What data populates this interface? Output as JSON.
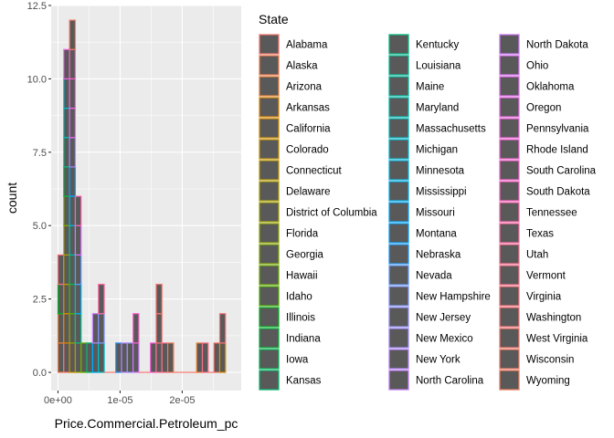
{
  "chart_data": {
    "type": "bar",
    "subtype": "stacked-histogram",
    "xlabel": "Price.Commercial.Petroleum_pc",
    "ylabel": "count",
    "xlim": [
      -1.1e-06,
      2.95e-05
    ],
    "ylim": [
      -0.62,
      12.5
    ],
    "x_ticks": [
      {
        "value": 0,
        "label": "0e+00"
      },
      {
        "value": 1e-05,
        "label": "1e-05"
      },
      {
        "value": 2e-05,
        "label": "2e-05"
      }
    ],
    "y_ticks": [
      {
        "value": 0,
        "label": "0.0"
      },
      {
        "value": 2.5,
        "label": "2.5"
      },
      {
        "value": 5,
        "label": "5.0"
      },
      {
        "value": 7.5,
        "label": "7.5"
      },
      {
        "value": 10,
        "label": "10.0"
      },
      {
        "value": 12.5,
        "label": "12.5"
      }
    ],
    "bin_start": 0,
    "bin_width": 9.3e-07,
    "bin_totals": [
      4,
      11,
      12,
      6,
      1,
      1,
      2,
      3,
      0,
      0,
      1,
      1,
      1,
      2,
      0,
      0,
      1,
      3,
      1,
      1,
      0,
      0,
      0,
      0,
      1,
      1,
      0,
      1,
      2
    ],
    "bin_state_counts": [
      [
        [
          1,
          1
        ],
        [
          2,
          1
        ],
        [
          13,
          1
        ],
        [
          46,
          1
        ]
      ],
      [
        [
          0,
          1
        ],
        [
          3,
          1
        ],
        [
          4,
          1
        ],
        [
          6,
          1
        ],
        [
          7,
          1
        ],
        [
          10,
          1
        ],
        [
          14,
          1
        ],
        [
          17,
          1
        ],
        [
          20,
          1
        ],
        [
          22,
          1
        ],
        [
          37,
          1
        ]
      ],
      [
        [
          5,
          1
        ],
        [
          9,
          1
        ],
        [
          12,
          1
        ],
        [
          15,
          1
        ],
        [
          19,
          1
        ],
        [
          23,
          1
        ],
        [
          26,
          1
        ],
        [
          31,
          1
        ],
        [
          36,
          1
        ],
        [
          38,
          1
        ],
        [
          41,
          1
        ],
        [
          49,
          1
        ]
      ],
      [
        [
          8,
          1
        ],
        [
          18,
          1
        ],
        [
          24,
          1
        ],
        [
          28,
          1
        ],
        [
          35,
          1
        ],
        [
          42,
          1
        ]
      ],
      [
        [
          11,
          1
        ]
      ],
      [
        [
          16,
          1
        ]
      ],
      [
        [
          25,
          1
        ],
        [
          33,
          1
        ]
      ],
      [
        [
          21,
          1
        ],
        [
          29,
          1
        ],
        [
          43,
          1
        ]
      ],
      [],
      [],
      [
        [
          27,
          1
        ]
      ],
      [
        [
          32,
          1
        ]
      ],
      [
        [
          30,
          1
        ]
      ],
      [
        [
          34,
          1
        ],
        [
          40,
          1
        ]
      ],
      [],
      [],
      [
        [
          39,
          1
        ]
      ],
      [
        [
          44,
          1
        ],
        [
          47,
          1
        ],
        [
          48,
          1
        ]
      ],
      [
        [
          45,
          1
        ]
      ],
      [
        [
          50,
          1
        ]
      ],
      [],
      [],
      [],
      [],
      [
        [
          2,
          1
        ]
      ],
      [
        [
          45,
          1
        ]
      ],
      [],
      [
        [
          48,
          1
        ]
      ],
      [
        [
          4,
          1
        ],
        [
          47,
          1
        ]
      ]
    ],
    "legend": {
      "title": "State",
      "placement": "right",
      "columns": 3,
      "fill_color": "#595959",
      "entries": [
        {
          "name": "Alabama",
          "color": "#F8766D"
        },
        {
          "name": "Alaska",
          "color": "#F47D4D"
        },
        {
          "name": "Arizona",
          "color": "#EC8239"
        },
        {
          "name": "Arkansas",
          "color": "#E38900"
        },
        {
          "name": "California",
          "color": "#D89000"
        },
        {
          "name": "Colorado",
          "color": "#CC9600"
        },
        {
          "name": "Connecticut",
          "color": "#BF9B00"
        },
        {
          "name": "Delaware",
          "color": "#B0A100"
        },
        {
          "name": "District of Columbia",
          "color": "#A3A500"
        },
        {
          "name": "Florida",
          "color": "#94A900"
        },
        {
          "name": "Georgia",
          "color": "#81AD00"
        },
        {
          "name": "Hawaii",
          "color": "#6BB100"
        },
        {
          "name": "Idaho",
          "color": "#4CB400"
        },
        {
          "name": "Illinois",
          "color": "#00B81F"
        },
        {
          "name": "Indiana",
          "color": "#00BA38"
        },
        {
          "name": "Iowa",
          "color": "#00BC56"
        },
        {
          "name": "Kansas",
          "color": "#00BF70"
        },
        {
          "name": "Kentucky",
          "color": "#00C083"
        },
        {
          "name": "Louisiana",
          "color": "#00C096"
        },
        {
          "name": "Maine",
          "color": "#00C0A7"
        },
        {
          "name": "Maryland",
          "color": "#00C0B8"
        },
        {
          "name": "Massachusetts",
          "color": "#00BFC4"
        },
        {
          "name": "Michigan",
          "color": "#00BCD5"
        },
        {
          "name": "Minnesota",
          "color": "#00B8E3"
        },
        {
          "name": "Mississippi",
          "color": "#00B2F0"
        },
        {
          "name": "Missouri",
          "color": "#00A9FF"
        },
        {
          "name": "Montana",
          "color": "#00A5FF"
        },
        {
          "name": "Nebraska",
          "color": "#1F9CFF"
        },
        {
          "name": "Nevada",
          "color": "#619CFF"
        },
        {
          "name": "New Hampshire",
          "color": "#7F96FF"
        },
        {
          "name": "New Jersey",
          "color": "#9590FF"
        },
        {
          "name": "New Mexico",
          "color": "#A58AFF"
        },
        {
          "name": "New York",
          "color": "#B983FF"
        },
        {
          "name": "North Carolina",
          "color": "#C77CFF"
        },
        {
          "name": "North Dakota",
          "color": "#D376FF"
        },
        {
          "name": "Ohio",
          "color": "#DE71F9"
        },
        {
          "name": "Oklahoma",
          "color": "#E76BF3"
        },
        {
          "name": "Oregon",
          "color": "#EF67EB"
        },
        {
          "name": "Pennsylvania",
          "color": "#F564E3"
        },
        {
          "name": "Rhode Island",
          "color": "#FA62DB"
        },
        {
          "name": "South Carolina",
          "color": "#FD61D1"
        },
        {
          "name": "South Dakota",
          "color": "#FF62C6"
        },
        {
          "name": "Tennessee",
          "color": "#FF64B0"
        },
        {
          "name": "Texas",
          "color": "#FF67A4"
        },
        {
          "name": "Utah",
          "color": "#FF6C91"
        },
        {
          "name": "Vermont",
          "color": "#FE6E8A"
        },
        {
          "name": "Virginia",
          "color": "#FC717F"
        },
        {
          "name": "Washington",
          "color": "#FA7476"
        },
        {
          "name": "West Virginia",
          "color": "#F8766D"
        },
        {
          "name": "Wisconsin",
          "color": "#F57964"
        },
        {
          "name": "Wyoming",
          "color": "#F37B59"
        }
      ]
    },
    "panel_background": "#EBEBEB",
    "grid": true
  }
}
